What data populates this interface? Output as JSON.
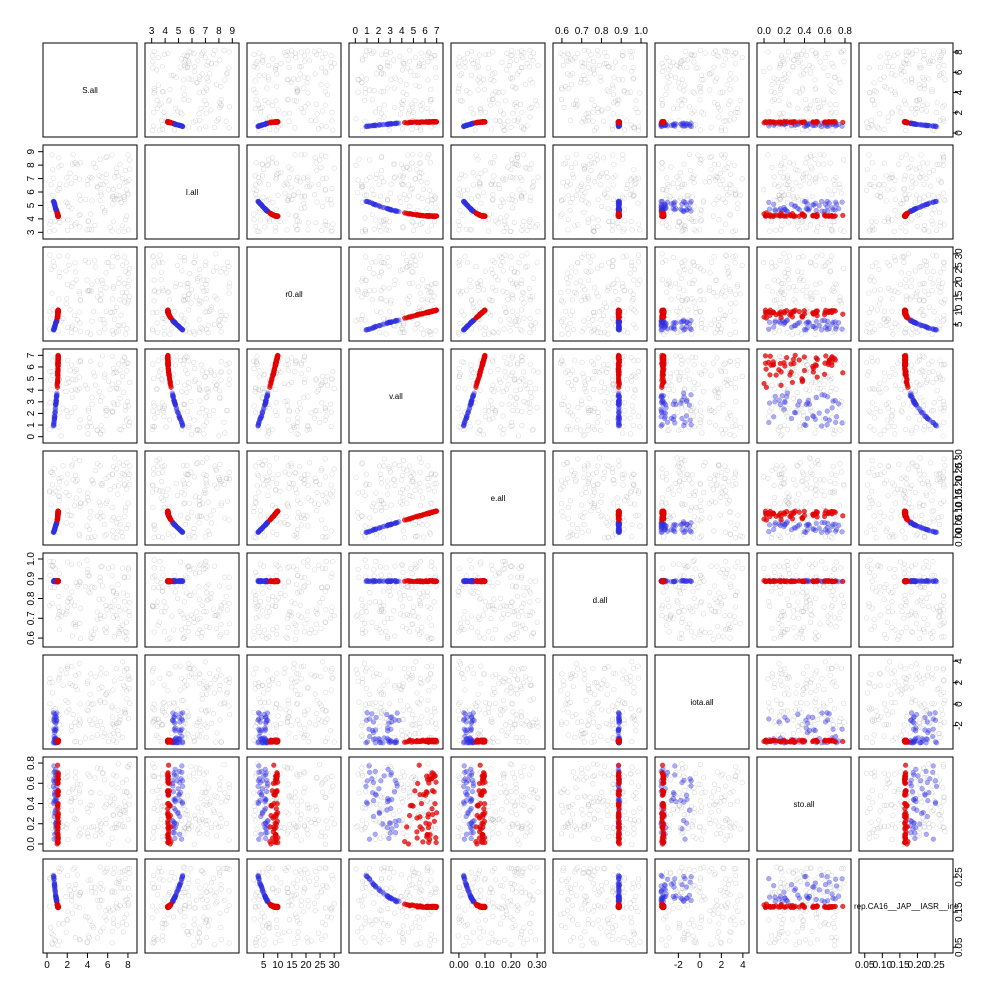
{
  "chart_data": {
    "type": "scatter",
    "title": "",
    "layout": "pairs-matrix",
    "variables": [
      {
        "name": "S.all",
        "range": [
          0,
          8.5
        ],
        "ticks": [
          0,
          2,
          4,
          6,
          8
        ],
        "tick_labels": [
          "0",
          "2",
          "4",
          "6",
          "8"
        ],
        "axis_side": "bottom-right",
        "clip": [
          0.55,
          1.1
        ]
      },
      {
        "name": "I.all",
        "range": [
          2.8,
          9.2
        ],
        "ticks": [
          3,
          4,
          5,
          6,
          7,
          8,
          9
        ],
        "tick_labels": [
          "3",
          "4",
          "5",
          "6",
          "7",
          "8",
          "9"
        ],
        "axis_side": "top-left",
        "clip": [
          4.2,
          5.5
        ]
      },
      {
        "name": "r0.all",
        "range": [
          0.5,
          31
        ],
        "ticks": [
          5,
          10,
          15,
          20,
          25,
          30
        ],
        "tick_labels": [
          "5",
          "10",
          "15",
          "20",
          "25",
          "30"
        ],
        "axis_side": "bottom-right",
        "clip": [
          2,
          10
        ]
      },
      {
        "name": "v.all",
        "range": [
          -0.2,
          7.2
        ],
        "ticks": [
          0,
          1,
          2,
          3,
          4,
          5,
          6,
          7
        ],
        "tick_labels": [
          "0",
          "1",
          "2",
          "3",
          "4",
          "5",
          "6",
          "7"
        ],
        "axis_side": "top-left",
        "clip": [
          0.5,
          7
        ]
      },
      {
        "name": "e.all",
        "range": [
          -0.015,
          0.315
        ],
        "ticks": [
          0,
          0.05,
          0.1,
          0.15,
          0.2,
          0.25,
          0.3
        ],
        "tick_labels": [
          "0.00",
          "0.05",
          "0.10",
          "0.15",
          "0.20",
          "0.25",
          "0.30"
        ],
        "tick_labels_bottom": [
          "0.00",
          "0.10",
          "0.20",
          "0.30"
        ],
        "ticks_bottom": [
          0,
          0.1,
          0.2,
          0.3
        ],
        "axis_side": "bottom-right",
        "clip": [
          0.01,
          0.1
        ]
      },
      {
        "name": "d.all",
        "range": [
          0.575,
          1.01
        ],
        "ticks": [
          0.6,
          0.7,
          0.8,
          0.9,
          1.0
        ],
        "tick_labels": [
          "0.6",
          "0.7",
          "0.8",
          "0.9",
          "1.0"
        ],
        "axis_side": "top-left",
        "clip": [
          0.885,
          0.895
        ]
      },
      {
        "name": "iota.all",
        "range": [
          -3.8,
          4.2
        ],
        "ticks": [
          -2,
          0,
          2,
          4
        ],
        "tick_labels": [
          "-2",
          "0",
          "2",
          "4"
        ],
        "axis_side": "bottom-right",
        "clip": [
          -3.7,
          -1
        ]
      },
      {
        "name": "sto.all",
        "range": [
          -0.03,
          0.82
        ],
        "ticks": [
          0,
          0.2,
          0.4,
          0.6,
          0.8
        ],
        "tick_labels": [
          "0.0",
          "0.2",
          "0.4",
          "0.6",
          "0.8"
        ],
        "axis_side": "top-left",
        "clip": [
          0.0,
          0.78
        ]
      },
      {
        "name": "rep.CA16__JAP__IASR__inc",
        "range": [
          0.045,
          0.29
        ],
        "ticks": [
          0.05,
          0.15,
          0.25
        ],
        "tick_labels": [
          "0.05",
          "0.15",
          "0.25"
        ],
        "tick_labels_bottom": [
          "0.05",
          "0.10",
          "0.15",
          "0.20",
          "0.25"
        ],
        "ticks_bottom": [
          0.05,
          0.1,
          0.15,
          0.2,
          0.25
        ],
        "axis_side": "bottom-right",
        "clip": [
          0.16,
          0.28
        ]
      }
    ],
    "series": [
      {
        "name": "",
        "color": "#808080",
        "opacity": 0.25,
        "style": "open-circle",
        "n_points": 120,
        "description": "prior samples spread uniformly over each variable range"
      },
      {
        "name": "",
        "color": "#0000dd",
        "opacity": 0.45,
        "style": "filled-circle",
        "n_points": 45,
        "description": "posterior trajectory early (blue)"
      },
      {
        "name": "",
        "color": "#dd0000",
        "opacity": 0.7,
        "style": "filled-circle",
        "n_points": 55,
        "description": "posterior trajectory late (red)"
      }
    ],
    "grid": false,
    "legend": "none"
  }
}
